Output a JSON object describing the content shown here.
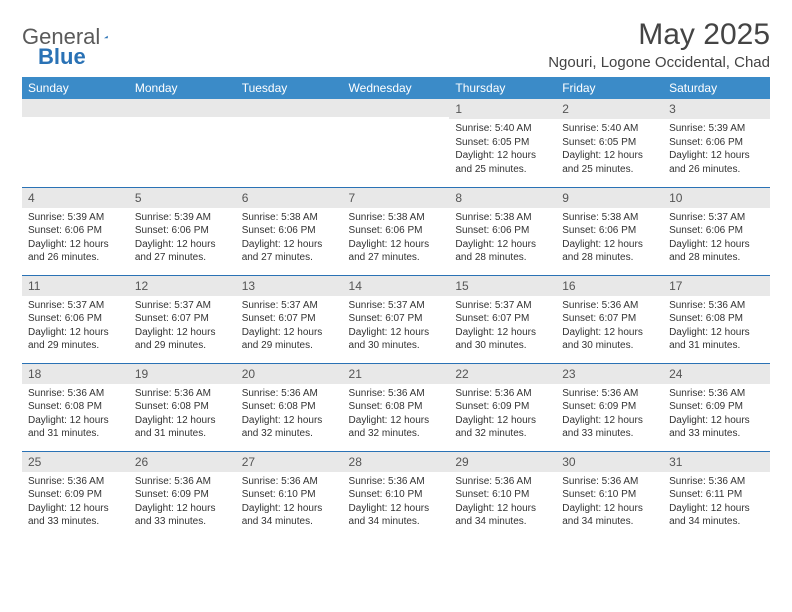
{
  "brand": {
    "part1": "General",
    "part2": "Blue"
  },
  "title": "May 2025",
  "location": "Ngouri, Logone Occidental, Chad",
  "header_bg": "#3b8bc8",
  "border_color": "#2a72b5",
  "daynum_bg": "#e8e8e8",
  "weekdays": [
    "Sunday",
    "Monday",
    "Tuesday",
    "Wednesday",
    "Thursday",
    "Friday",
    "Saturday"
  ],
  "weeks": [
    [
      null,
      null,
      null,
      null,
      {
        "n": "1",
        "sr": "5:40 AM",
        "ss": "6:05 PM",
        "dl": "12 hours and 25 minutes."
      },
      {
        "n": "2",
        "sr": "5:40 AM",
        "ss": "6:05 PM",
        "dl": "12 hours and 25 minutes."
      },
      {
        "n": "3",
        "sr": "5:39 AM",
        "ss": "6:06 PM",
        "dl": "12 hours and 26 minutes."
      }
    ],
    [
      {
        "n": "4",
        "sr": "5:39 AM",
        "ss": "6:06 PM",
        "dl": "12 hours and 26 minutes."
      },
      {
        "n": "5",
        "sr": "5:39 AM",
        "ss": "6:06 PM",
        "dl": "12 hours and 27 minutes."
      },
      {
        "n": "6",
        "sr": "5:38 AM",
        "ss": "6:06 PM",
        "dl": "12 hours and 27 minutes."
      },
      {
        "n": "7",
        "sr": "5:38 AM",
        "ss": "6:06 PM",
        "dl": "12 hours and 27 minutes."
      },
      {
        "n": "8",
        "sr": "5:38 AM",
        "ss": "6:06 PM",
        "dl": "12 hours and 28 minutes."
      },
      {
        "n": "9",
        "sr": "5:38 AM",
        "ss": "6:06 PM",
        "dl": "12 hours and 28 minutes."
      },
      {
        "n": "10",
        "sr": "5:37 AM",
        "ss": "6:06 PM",
        "dl": "12 hours and 28 minutes."
      }
    ],
    [
      {
        "n": "11",
        "sr": "5:37 AM",
        "ss": "6:06 PM",
        "dl": "12 hours and 29 minutes."
      },
      {
        "n": "12",
        "sr": "5:37 AM",
        "ss": "6:07 PM",
        "dl": "12 hours and 29 minutes."
      },
      {
        "n": "13",
        "sr": "5:37 AM",
        "ss": "6:07 PM",
        "dl": "12 hours and 29 minutes."
      },
      {
        "n": "14",
        "sr": "5:37 AM",
        "ss": "6:07 PM",
        "dl": "12 hours and 30 minutes."
      },
      {
        "n": "15",
        "sr": "5:37 AM",
        "ss": "6:07 PM",
        "dl": "12 hours and 30 minutes."
      },
      {
        "n": "16",
        "sr": "5:36 AM",
        "ss": "6:07 PM",
        "dl": "12 hours and 30 minutes."
      },
      {
        "n": "17",
        "sr": "5:36 AM",
        "ss": "6:08 PM",
        "dl": "12 hours and 31 minutes."
      }
    ],
    [
      {
        "n": "18",
        "sr": "5:36 AM",
        "ss": "6:08 PM",
        "dl": "12 hours and 31 minutes."
      },
      {
        "n": "19",
        "sr": "5:36 AM",
        "ss": "6:08 PM",
        "dl": "12 hours and 31 minutes."
      },
      {
        "n": "20",
        "sr": "5:36 AM",
        "ss": "6:08 PM",
        "dl": "12 hours and 32 minutes."
      },
      {
        "n": "21",
        "sr": "5:36 AM",
        "ss": "6:08 PM",
        "dl": "12 hours and 32 minutes."
      },
      {
        "n": "22",
        "sr": "5:36 AM",
        "ss": "6:09 PM",
        "dl": "12 hours and 32 minutes."
      },
      {
        "n": "23",
        "sr": "5:36 AM",
        "ss": "6:09 PM",
        "dl": "12 hours and 33 minutes."
      },
      {
        "n": "24",
        "sr": "5:36 AM",
        "ss": "6:09 PM",
        "dl": "12 hours and 33 minutes."
      }
    ],
    [
      {
        "n": "25",
        "sr": "5:36 AM",
        "ss": "6:09 PM",
        "dl": "12 hours and 33 minutes."
      },
      {
        "n": "26",
        "sr": "5:36 AM",
        "ss": "6:09 PM",
        "dl": "12 hours and 33 minutes."
      },
      {
        "n": "27",
        "sr": "5:36 AM",
        "ss": "6:10 PM",
        "dl": "12 hours and 34 minutes."
      },
      {
        "n": "28",
        "sr": "5:36 AM",
        "ss": "6:10 PM",
        "dl": "12 hours and 34 minutes."
      },
      {
        "n": "29",
        "sr": "5:36 AM",
        "ss": "6:10 PM",
        "dl": "12 hours and 34 minutes."
      },
      {
        "n": "30",
        "sr": "5:36 AM",
        "ss": "6:10 PM",
        "dl": "12 hours and 34 minutes."
      },
      {
        "n": "31",
        "sr": "5:36 AM",
        "ss": "6:11 PM",
        "dl": "12 hours and 34 minutes."
      }
    ]
  ],
  "labels": {
    "sunrise": "Sunrise:",
    "sunset": "Sunset:",
    "daylight": "Daylight:"
  }
}
